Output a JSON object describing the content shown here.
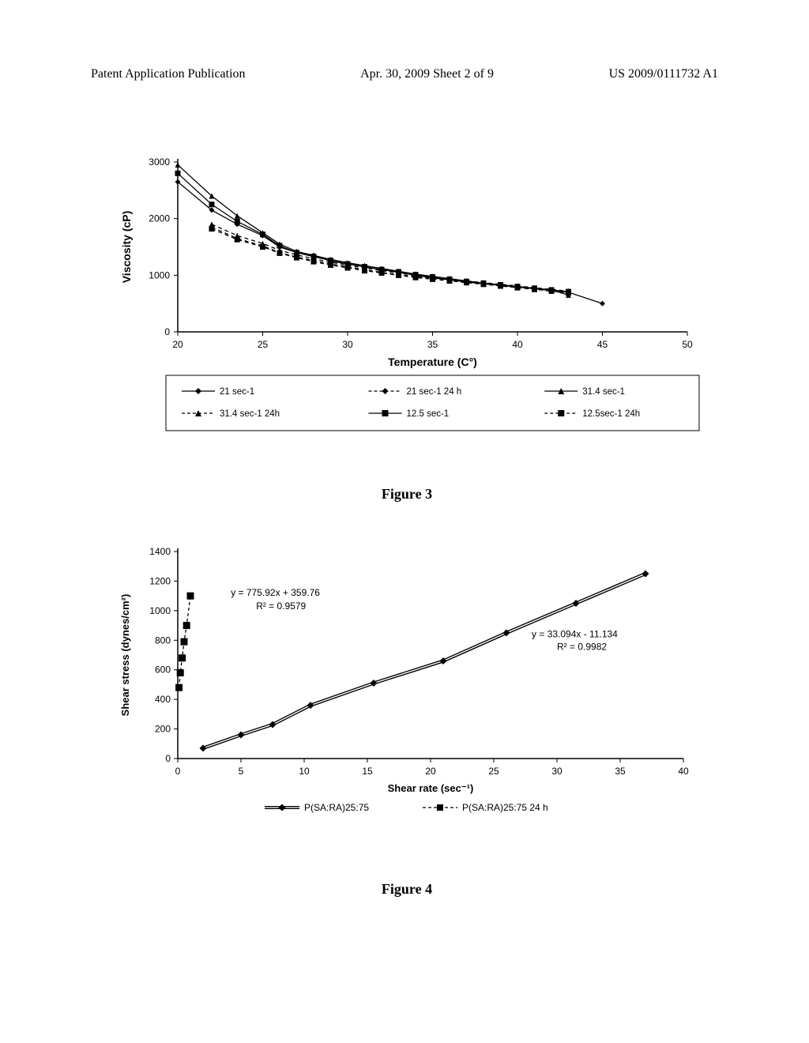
{
  "header": {
    "left": "Patent Application Publication",
    "center": "Apr. 30, 2009  Sheet 2 of 9",
    "right": "US 2009/0111732 A1"
  },
  "fig3": {
    "caption": "Figure 3",
    "type": "line",
    "xlabel": "Temperature (C°)",
    "ylabel": "Viscosity (cP)",
    "label_fontsize": 14,
    "label_fontweight": "bold",
    "tick_fontsize": 12,
    "xlim": [
      20,
      50
    ],
    "ylim": [
      0,
      3000
    ],
    "xtick_step": 5,
    "ytick_step": 1000,
    "background_color": "#ffffff",
    "axis_color": "#000000",
    "series": [
      {
        "name": "21 sec-1",
        "marker": "diamond",
        "linestyle": "solid",
        "color": "#000000",
        "x": [
          20,
          22,
          23.5,
          25,
          26,
          27,
          28,
          29,
          30,
          31,
          32,
          33,
          34,
          35,
          36,
          37,
          38,
          39,
          40,
          41,
          42,
          43,
          45
        ],
        "y": [
          2650,
          2150,
          1900,
          1700,
          1500,
          1400,
          1350,
          1250,
          1200,
          1150,
          1100,
          1050,
          1000,
          950,
          920,
          880,
          850,
          820,
          790,
          760,
          730,
          700,
          500
        ]
      },
      {
        "name": "21 sec-1 24 h",
        "marker": "diamond",
        "linestyle": "dashed",
        "color": "#000000",
        "x": [
          22,
          23.5,
          25,
          26,
          27,
          28,
          29,
          30,
          31,
          32,
          33,
          34,
          35,
          36,
          37,
          38,
          39,
          40,
          41,
          42,
          43
        ],
        "y": [
          1850,
          1650,
          1520,
          1400,
          1320,
          1260,
          1200,
          1150,
          1100,
          1050,
          1010,
          980,
          950,
          920,
          890,
          860,
          830,
          800,
          770,
          740,
          710
        ]
      },
      {
        "name": "31.4 sec-1",
        "marker": "triangle",
        "linestyle": "solid",
        "color": "#000000",
        "x": [
          20,
          22,
          23.5,
          25,
          26,
          27,
          28,
          29,
          30,
          31,
          32,
          33,
          34,
          35,
          36,
          37,
          38,
          39,
          40,
          41,
          42,
          43
        ],
        "y": [
          2950,
          2400,
          2050,
          1750,
          1550,
          1420,
          1350,
          1280,
          1220,
          1170,
          1120,
          1070,
          1020,
          980,
          940,
          900,
          860,
          830,
          800,
          770,
          740,
          650
        ]
      },
      {
        "name": "31.4 sec-1 24h",
        "marker": "triangle",
        "linestyle": "dashed",
        "color": "#000000",
        "x": [
          22,
          23.5,
          25,
          26,
          27,
          28,
          29,
          30,
          31,
          32,
          33,
          34,
          35,
          36,
          37,
          38,
          39,
          40,
          41,
          42,
          43
        ],
        "y": [
          1900,
          1700,
          1560,
          1440,
          1360,
          1290,
          1230,
          1180,
          1130,
          1080,
          1040,
          1000,
          960,
          930,
          900,
          870,
          840,
          810,
          780,
          750,
          720
        ]
      },
      {
        "name": "12.5 sec-1",
        "marker": "square",
        "linestyle": "solid",
        "color": "#000000",
        "x": [
          20,
          22,
          23.5,
          25,
          26,
          27,
          28,
          29,
          30,
          31,
          32,
          33,
          34,
          35,
          36,
          37,
          38,
          39,
          40,
          41,
          42,
          43
        ],
        "y": [
          2800,
          2250,
          1950,
          1720,
          1520,
          1400,
          1330,
          1260,
          1200,
          1150,
          1100,
          1060,
          1010,
          970,
          930,
          890,
          860,
          830,
          800,
          770,
          740,
          710
        ]
      },
      {
        "name": "12.5sec-1 24h",
        "marker": "square",
        "linestyle": "dashed",
        "color": "#000000",
        "x": [
          22,
          23.5,
          25,
          26,
          27,
          28,
          29,
          30,
          31,
          32,
          33,
          34,
          35,
          36,
          37,
          38,
          39,
          40,
          41,
          42,
          43
        ],
        "y": [
          1820,
          1630,
          1500,
          1390,
          1310,
          1240,
          1180,
          1130,
          1080,
          1040,
          1000,
          960,
          930,
          900,
          870,
          840,
          810,
          780,
          750,
          720,
          690
        ]
      }
    ]
  },
  "fig4": {
    "caption": "Figure 4",
    "type": "scatter-line",
    "xlabel": "Shear rate (sec⁻¹)",
    "ylabel": "Shear stress (dynes/cm²)",
    "label_fontsize": 13,
    "label_fontweight": "bold",
    "tick_fontsize": 12,
    "xlim": [
      0,
      40
    ],
    "ylim": [
      0,
      1400
    ],
    "xtick_step": 5,
    "ytick_step": 200,
    "background_color": "#ffffff",
    "axis_color": "#000000",
    "series": [
      {
        "name": "P(SA:RA)25:75",
        "marker": "diamond",
        "linestyle": "double",
        "color": "#000000",
        "x": [
          2,
          5,
          7.5,
          10.5,
          15.5,
          21,
          26,
          31.5,
          37
        ],
        "y": [
          70,
          160,
          230,
          360,
          510,
          660,
          850,
          1050,
          1250
        ],
        "trendline_label": "y = 33.094x - 11.134",
        "trendline_r2": "R² = 0.9982"
      },
      {
        "name": "P(SA:RA)25:75 24 h",
        "marker": "square",
        "linestyle": "dashed",
        "color": "#000000",
        "x": [
          0.1,
          0.2,
          0.35,
          0.5,
          0.7,
          1.0
        ],
        "y": [
          480,
          580,
          680,
          790,
          900,
          1100
        ],
        "trendline_label": "y = 775.92x + 359.76",
        "trendline_r2": "R² = 0.9579"
      }
    ]
  }
}
